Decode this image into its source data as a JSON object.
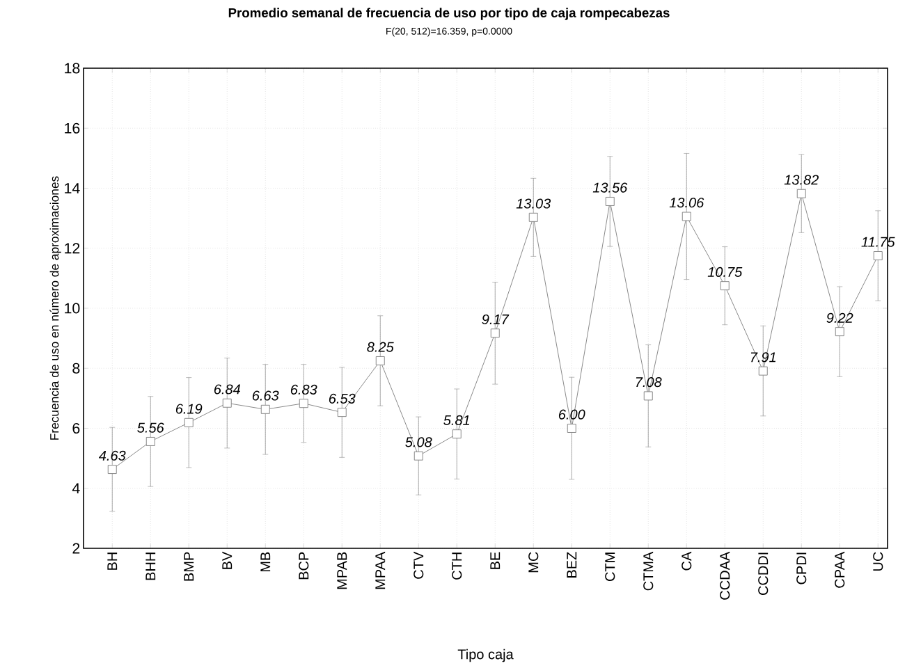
{
  "chart_data": {
    "type": "line",
    "title": "Promedio semanal de frecuencia de uso por tipo de caja rompecabezas",
    "subtitle": "F(20, 512)=16.359, p=0.0000",
    "xlabel": "Tipo caja",
    "ylabel": "Frecuencia de uso en número de aproximaciones",
    "categories": [
      "BH",
      "BHH",
      "BMP",
      "BV",
      "MB",
      "BCP",
      "MPAB",
      "MPAA",
      "CTV",
      "CTH",
      "BE",
      "MC",
      "BEZ",
      "CTM",
      "CTMA",
      "CA",
      "CCDAA",
      "CCDDI",
      "CPDI",
      "CPAA",
      "UC"
    ],
    "values": [
      4.63,
      5.56,
      6.19,
      6.84,
      6.63,
      6.83,
      6.53,
      8.25,
      5.08,
      5.81,
      9.17,
      13.03,
      6.0,
      13.56,
      7.08,
      13.06,
      10.75,
      7.91,
      13.82,
      9.22,
      11.75
    ],
    "value_labels": [
      "4.63",
      "5.56",
      "6.19",
      "6.84",
      "6.63",
      "6.83",
      "6.53",
      "8.25",
      "5.08",
      "5.81",
      "9.17",
      "13.03",
      "6.00",
      "13.56",
      "7.08",
      "13.06",
      "10.75",
      "7.91",
      "13.82",
      "9.22",
      "11.75"
    ],
    "errors": [
      1.4,
      1.5,
      1.5,
      1.5,
      1.5,
      1.3,
      1.5,
      1.5,
      1.3,
      1.5,
      1.7,
      1.3,
      1.7,
      1.5,
      1.7,
      2.1,
      1.3,
      1.5,
      1.3,
      1.5,
      1.5
    ],
    "color": "#808080",
    "marker": "square",
    "line_style": "solid",
    "grid": true,
    "ylim": [
      2,
      18
    ],
    "yticks": [
      2,
      4,
      6,
      8,
      10,
      12,
      14,
      16,
      18
    ]
  }
}
